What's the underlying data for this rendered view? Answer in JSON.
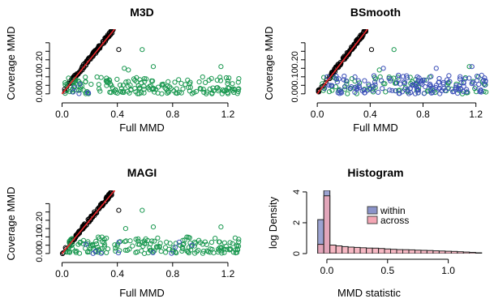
{
  "chart_data": [
    {
      "type": "scatter",
      "title": "M3D",
      "xlabel": "Full MMD",
      "ylabel": "Coverage MMD",
      "xlim": [
        -0.05,
        1.3
      ],
      "ylim": [
        -0.02,
        0.38
      ],
      "xticks": [
        "0.0",
        "0.4",
        "0.8",
        "1.2"
      ],
      "xtick_values": [
        0.0,
        0.4,
        0.8,
        1.2
      ],
      "yticks": [
        "0.00",
        "0.10",
        "0.20"
      ],
      "ytick_values": [
        0.0,
        0.1,
        0.2
      ],
      "reference_line": {
        "slope": 1,
        "intercept": 0,
        "color": "#e8262b"
      },
      "series": [
        {
          "color": "#000000",
          "cluster": {
            "type": "diagonal",
            "x": [
              0.0,
              0.37
            ],
            "n": 120,
            "noise": 0.012
          },
          "points": [
            [
              0.41,
              0.26
            ]
          ]
        },
        {
          "color": "#1a9850",
          "cluster": {
            "type": "band",
            "x": [
              0.02,
              1.28
            ],
            "y": [
              0.0,
              0.1
            ],
            "n": 190
          },
          "points": [
            [
              0.58,
              0.26
            ],
            [
              0.45,
              0.15
            ],
            [
              0.48,
              0.14
            ],
            [
              0.66,
              0.16
            ],
            [
              1.15,
              0.16
            ]
          ]
        },
        {
          "color": "#3b4fb8",
          "cluster": {
            "type": "band",
            "x": [
              0.02,
              0.2
            ],
            "y": [
              0.0,
              0.06
            ],
            "n": 6
          },
          "points": []
        }
      ]
    },
    {
      "type": "scatter",
      "title": "BSmooth",
      "xlabel": "Full MMD",
      "ylabel": "Coverage MMD",
      "xlim": [
        -0.05,
        1.3
      ],
      "ylim": [
        -0.02,
        0.38
      ],
      "xticks": [
        "0.0",
        "0.4",
        "0.8",
        "1.2"
      ],
      "xtick_values": [
        0.0,
        0.4,
        0.8,
        1.2
      ],
      "yticks": [
        "0.00",
        "0.10",
        "0.20"
      ],
      "ytick_values": [
        0.0,
        0.1,
        0.2
      ],
      "reference_line": {
        "slope": 1,
        "intercept": 0,
        "color": "#e8262b"
      },
      "series": [
        {
          "color": "#000000",
          "cluster": {
            "type": "diagonal",
            "x": [
              0.0,
              0.37
            ],
            "n": 120,
            "noise": 0.012
          },
          "points": [
            [
              0.41,
              0.26
            ]
          ]
        },
        {
          "color": "#1a9850",
          "cluster": {
            "type": "band",
            "x": [
              0.02,
              1.28
            ],
            "y": [
              0.0,
              0.1
            ],
            "n": 90
          },
          "points": [
            [
              0.58,
              0.26
            ],
            [
              0.47,
              0.14
            ],
            [
              1.15,
              0.16
            ]
          ]
        },
        {
          "color": "#3b4fb8",
          "cluster": {
            "type": "band",
            "x": [
              0.05,
              1.28
            ],
            "y": [
              0.0,
              0.11
            ],
            "n": 150
          },
          "points": [
            [
              0.5,
              0.15
            ],
            [
              0.9,
              0.15
            ],
            [
              1.17,
              0.16
            ]
          ]
        }
      ]
    },
    {
      "type": "scatter",
      "title": "MAGI",
      "xlabel": "Full MMD",
      "ylabel": "Coverage MMD",
      "xlim": [
        -0.05,
        1.3
      ],
      "ylim": [
        -0.02,
        0.38
      ],
      "xticks": [
        "0.0",
        "0.4",
        "0.8",
        "1.2"
      ],
      "xtick_values": [
        0.0,
        0.4,
        0.8,
        1.2
      ],
      "yticks": [
        "0.00",
        "0.10",
        "0.20"
      ],
      "ytick_values": [
        0.0,
        0.1,
        0.2
      ],
      "reference_line": {
        "slope": 1,
        "intercept": 0,
        "color": "#e8262b"
      },
      "series": [
        {
          "color": "#000000",
          "cluster": {
            "type": "diagonal",
            "x": [
              0.0,
              0.37
            ],
            "n": 120,
            "noise": 0.012
          },
          "points": [
            [
              0.41,
              0.26
            ]
          ]
        },
        {
          "color": "#1a9850",
          "cluster": {
            "type": "band",
            "x": [
              0.02,
              1.28
            ],
            "y": [
              0.0,
              0.1
            ],
            "n": 185
          },
          "points": [
            [
              0.58,
              0.26
            ],
            [
              0.46,
              0.15
            ],
            [
              0.66,
              0.16
            ],
            [
              1.15,
              0.16
            ]
          ]
        },
        {
          "color": "#3b4fb8",
          "cluster": {
            "type": "band",
            "x": [
              0.02,
              0.95
            ],
            "y": [
              0.0,
              0.07
            ],
            "n": 10
          },
          "points": [
            [
              0.94,
              0.05
            ]
          ]
        }
      ]
    },
    {
      "type": "bar",
      "title": "Histogram",
      "xlabel": "MMD statistic",
      "ylabel": "log Density",
      "xlim": [
        -0.12,
        1.35
      ],
      "ylim": [
        0,
        4.1
      ],
      "xticks": [
        "0.0",
        "0.5",
        "1.0"
      ],
      "xtick_values": [
        0.0,
        0.5,
        1.0
      ],
      "yticks": [
        "0",
        "2",
        "4"
      ],
      "ytick_values": [
        0,
        2,
        4
      ],
      "bin_width": 0.05,
      "legend": {
        "position": "center",
        "entries": [
          {
            "label": "within",
            "color": "#8b93c9"
          },
          {
            "label": "across",
            "color": "#f4a6b4"
          }
        ]
      },
      "series": [
        {
          "name": "within",
          "color": "#8b93c9",
          "opacity": 0.85,
          "bins": [
            [
              -0.05,
              2.2
            ],
            [
              0.0,
              4.1
            ],
            [
              0.05,
              0.05
            ]
          ]
        },
        {
          "name": "across",
          "color": "#f4a6b4",
          "opacity": 0.8,
          "bins": [
            [
              -0.05,
              0.6
            ],
            [
              0.0,
              3.75
            ],
            [
              0.05,
              0.55
            ],
            [
              0.1,
              0.5
            ],
            [
              0.15,
              0.45
            ],
            [
              0.2,
              0.42
            ],
            [
              0.25,
              0.4
            ],
            [
              0.3,
              0.38
            ],
            [
              0.35,
              0.36
            ],
            [
              0.4,
              0.35
            ],
            [
              0.45,
              0.33
            ],
            [
              0.5,
              0.3
            ],
            [
              0.55,
              0.28
            ],
            [
              0.6,
              0.26
            ],
            [
              0.65,
              0.25
            ],
            [
              0.7,
              0.24
            ],
            [
              0.75,
              0.22
            ],
            [
              0.8,
              0.21
            ],
            [
              0.85,
              0.2
            ],
            [
              0.9,
              0.18
            ],
            [
              0.95,
              0.17
            ],
            [
              1.0,
              0.15
            ],
            [
              1.05,
              0.14
            ],
            [
              1.1,
              0.12
            ],
            [
              1.15,
              0.1
            ],
            [
              1.2,
              0.08
            ],
            [
              1.25,
              0.05
            ]
          ]
        }
      ]
    }
  ]
}
